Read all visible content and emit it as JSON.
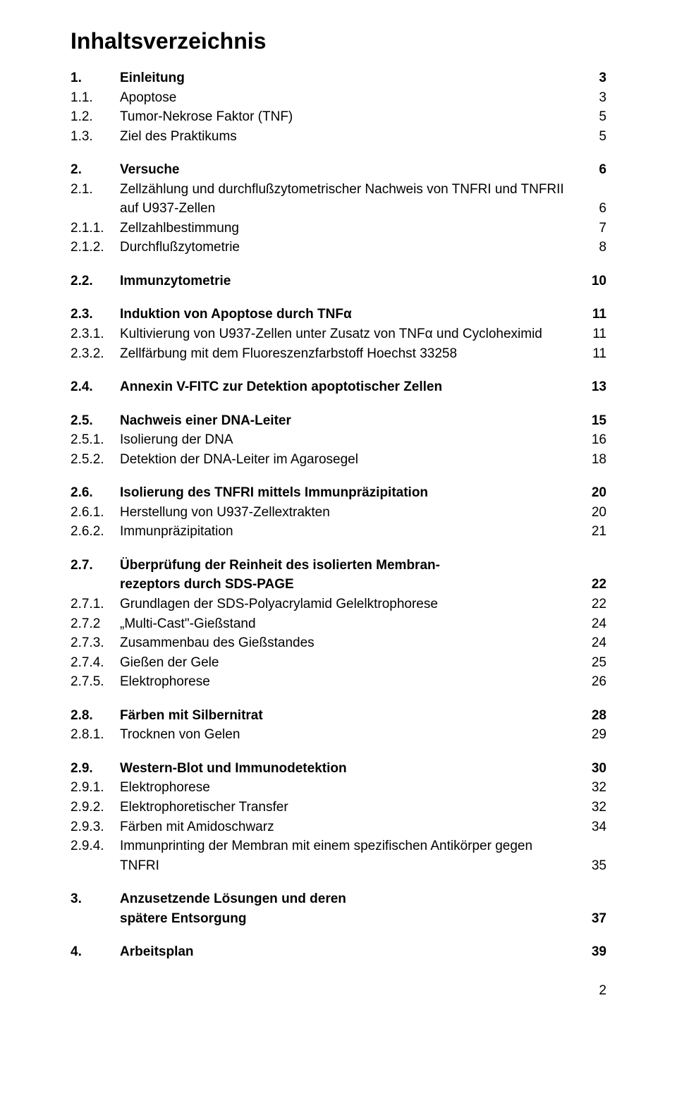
{
  "title": "Inhaltsverzeichnis",
  "pageNumber": "2",
  "toc": [
    {
      "num": "1.",
      "label": "Einleitung",
      "page": "3",
      "bold": true,
      "gap": false
    },
    {
      "num": "1.1.",
      "label": "Apoptose",
      "page": "3",
      "bold": false,
      "gap": false
    },
    {
      "num": "1.2.",
      "label": "Tumor-Nekrose Faktor (TNF)",
      "page": "5",
      "bold": false,
      "gap": false
    },
    {
      "num": "1.3.",
      "label": "Ziel des Praktikums",
      "page": "5",
      "bold": false,
      "gap": true
    },
    {
      "num": "2.",
      "label": "Versuche",
      "page": "6",
      "bold": true,
      "gap": false
    },
    {
      "num": "2.1.",
      "label": "Zellzählung und durchflußzytometrischer Nachweis von TNFRI und TNFRII auf U937-Zellen",
      "page": "6",
      "bold": false,
      "gap": false
    },
    {
      "num": "2.1.1.",
      "label": "Zellzahlbestimmung",
      "page": "7",
      "bold": false,
      "gap": false
    },
    {
      "num": "2.1.2.",
      "label": "Durchflußzytometrie",
      "page": "8",
      "bold": false,
      "gap": true
    },
    {
      "num": "2.2.",
      "label": "Immunzytometrie",
      "page": "10",
      "bold": true,
      "gap": true
    },
    {
      "num": "2.3.",
      "label": "Induktion von Apoptose durch TNFα",
      "page": "11",
      "bold": true,
      "gap": false
    },
    {
      "num": "2.3.1.",
      "label": "Kultivierung von U937-Zellen unter Zusatz von TNFα und Cycloheximid",
      "page": "11",
      "bold": false,
      "gap": false
    },
    {
      "num": "2.3.2.",
      "label": "Zellfärbung mit dem Fluoreszenzfarbstoff Hoechst 33258",
      "page": "11",
      "bold": false,
      "gap": true
    },
    {
      "num": "2.4.",
      "label": "Annexin V-FITC zur Detektion apoptotischer Zellen",
      "page": "13",
      "bold": true,
      "gap": true
    },
    {
      "num": "2.5.",
      "label": "Nachweis einer DNA-Leiter",
      "page": "15",
      "bold": true,
      "gap": false
    },
    {
      "num": "2.5.1.",
      "label": "Isolierung der DNA",
      "page": "16",
      "bold": false,
      "gap": false
    },
    {
      "num": "2.5.2.",
      "label": "Detektion der DNA-Leiter im Agarosegel",
      "page": "18",
      "bold": false,
      "gap": true
    },
    {
      "num": "2.6.",
      "label": "Isolierung des TNFRI mittels Immunpräzipitation",
      "page": "20",
      "bold": true,
      "gap": false
    },
    {
      "num": "2.6.1.",
      "label": "Herstellung von U937-Zellextrakten",
      "page": "20",
      "bold": false,
      "gap": false
    },
    {
      "num": "2.6.2.",
      "label": "Immunpräzipitation",
      "page": "21",
      "bold": false,
      "gap": true
    },
    {
      "num": "2.7.",
      "label": "Überprüfung der Reinheit des isolierten Membranrezeptors durch SDS-PAGE",
      "labelLine1": "Überprüfung der Reinheit des isolierten Membran-",
      "labelLine2": "rezeptors durch SDS-PAGE",
      "page": "22",
      "bold": true,
      "gap": false,
      "multiline": true
    },
    {
      "num": "2.7.1.",
      "label": "Grundlagen der SDS-Polyacrylamid Gelelktrophorese",
      "page": "22",
      "bold": false,
      "gap": false
    },
    {
      "num": "2.7.2",
      "label": "„Multi-Cast\"-Gießstand",
      "page": "24",
      "bold": false,
      "gap": false
    },
    {
      "num": "2.7.3.",
      "label": " Zusammenbau des Gießstandes",
      "page": "24",
      "bold": false,
      "gap": false
    },
    {
      "num": "2.7.4.",
      "label": " Gießen der Gele",
      "page": "25",
      "bold": false,
      "gap": false
    },
    {
      "num": "2.7.5.",
      "label": " Elektrophorese",
      "page": "26",
      "bold": false,
      "gap": true
    },
    {
      "num": "2.8.",
      "label": "Färben mit Silbernitrat",
      "page": "28",
      "bold": true,
      "gap": false
    },
    {
      "num": "2.8.1.",
      "label": "Trocknen von Gelen",
      "page": "29",
      "bold": false,
      "gap": true
    },
    {
      "num": "2.9.",
      "label": "Western-Blot und Immunodetektion",
      "page": "30",
      "bold": true,
      "gap": false
    },
    {
      "num": "2.9.1.",
      "label": "Elektrophorese",
      "page": "32",
      "bold": false,
      "gap": false
    },
    {
      "num": "2.9.2.",
      "label": "Elektrophoretischer Transfer",
      "page": "32",
      "bold": false,
      "gap": false
    },
    {
      "num": "2.9.3.",
      "label": "Färben mit Amidoschwarz",
      "page": "34",
      "bold": false,
      "gap": false
    },
    {
      "num": "2.9.4.",
      "label": "Immunprinting der Membran mit einem spezifischen Antikörper gegen TNFRI",
      "page": "35",
      "bold": false,
      "gap": true
    },
    {
      "num": "3.",
      "label": "Anzusetzende Lösungen und deren spätere Entsorgung",
      "labelLine1": "Anzusetzende Lösungen und deren",
      "labelLine2": "spätere Entsorgung",
      "page": "37",
      "bold": true,
      "gap": true,
      "multiline": true
    },
    {
      "num": "4.",
      "label": "Arbeitsplan",
      "page": "39",
      "bold": true,
      "gap": false
    }
  ]
}
